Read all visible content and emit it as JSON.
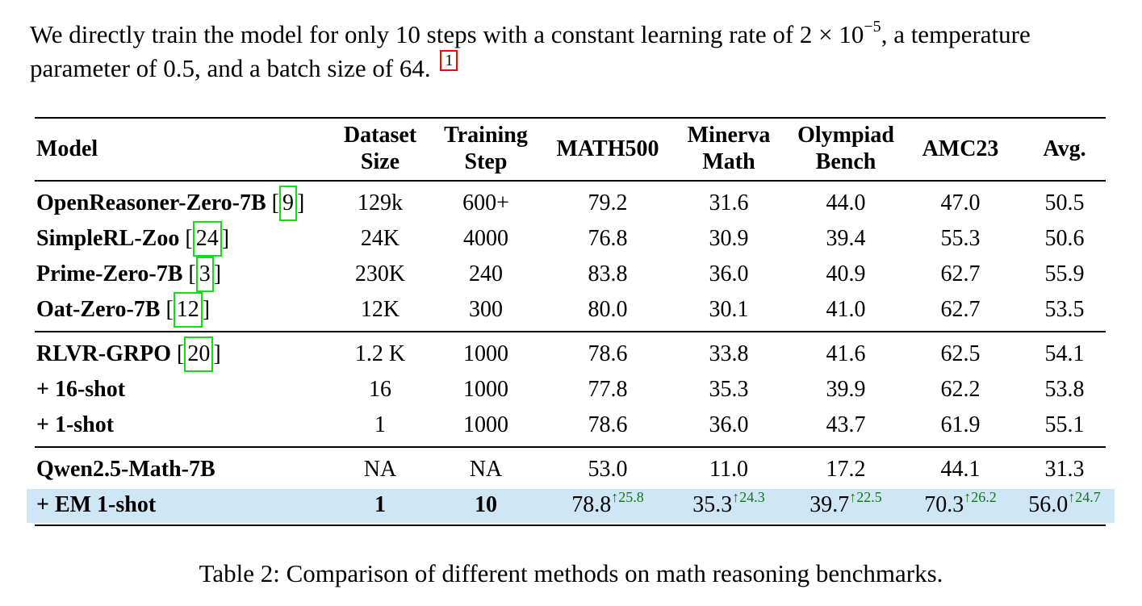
{
  "paragraph": {
    "text_before": "We directly train the model for only 10 steps with a constant learning rate of 2 × 10",
    "exponent": "−5",
    "text_after": ", a temperature parameter of 0.5, and a batch size of 64.",
    "footnote": "1"
  },
  "table": {
    "headers": {
      "model": "Model",
      "dataset_size": [
        "Dataset",
        "Size"
      ],
      "training_step": [
        "Training",
        "Step"
      ],
      "math500": "MATH500",
      "minerva": [
        "Minerva",
        "Math"
      ],
      "olympiad": [
        "Olympiad",
        "Bench"
      ],
      "amc23": "AMC23",
      "avg": "Avg."
    },
    "rows": [
      {
        "model": "OpenReasoner-Zero-7B",
        "cite": "9",
        "dataset": "129k",
        "steps": "600+",
        "math500": "79.2",
        "minerva": "31.6",
        "olympiad": "44.0",
        "amc23": "47.0",
        "avg": "50.5"
      },
      {
        "model": "SimpleRL-Zoo",
        "cite": "24",
        "dataset": "24K",
        "steps": "4000",
        "math500": "76.8",
        "minerva": "30.9",
        "olympiad": "39.4",
        "amc23": "55.3",
        "avg": "50.6"
      },
      {
        "model": "Prime-Zero-7B",
        "cite": "3",
        "dataset": "230K",
        "steps": "240",
        "math500": "83.8",
        "minerva": "36.0",
        "olympiad": "40.9",
        "amc23": "62.7",
        "avg": "55.9"
      },
      {
        "model": "Oat-Zero-7B",
        "cite": "12",
        "dataset": "12K",
        "steps": "300",
        "math500": "80.0",
        "minerva": "30.1",
        "olympiad": "41.0",
        "amc23": "62.7",
        "avg": "53.5"
      },
      {
        "model": "RLVR-GRPO",
        "cite": "20",
        "dataset": "1.2 K",
        "steps": "1000",
        "math500": "78.6",
        "minerva": "33.8",
        "olympiad": "41.6",
        "amc23": "62.5",
        "avg": "54.1"
      },
      {
        "model": "+ 16-shot",
        "cite": "",
        "dataset": "16",
        "steps": "1000",
        "math500": "77.8",
        "minerva": "35.3",
        "olympiad": "39.9",
        "amc23": "62.2",
        "avg": "53.8"
      },
      {
        "model": "+ 1-shot",
        "cite": "",
        "dataset": "1",
        "steps": "1000",
        "math500": "78.6",
        "minerva": "36.0",
        "olympiad": "43.7",
        "amc23": "61.9",
        "avg": "55.1"
      },
      {
        "model": "Qwen2.5-Math-7B",
        "cite": "",
        "dataset": "NA",
        "steps": "NA",
        "math500": "53.0",
        "minerva": "11.0",
        "olympiad": "17.2",
        "amc23": "44.1",
        "avg": "31.3"
      }
    ],
    "em_row": {
      "model": "+ EM 1-shot",
      "dataset": "1",
      "steps": "10",
      "math500": "78.8",
      "math500_gain": "↑25.8",
      "minerva": "35.3",
      "minerva_gain": "↑24.3",
      "olympiad": "39.7",
      "olympiad_gain": "↑22.5",
      "amc23": "70.3",
      "amc23_gain": "↑26.2",
      "avg": "56.0",
      "avg_gain": "↑24.7"
    }
  },
  "caption": "Table 2: Comparison of different methods on math reasoning benchmarks.",
  "colors": {
    "highlight_row": "#cfe6f6",
    "gain_text": "#0b7a0b",
    "citation_box": "#11dd11",
    "footnote_box": "#ff0000"
  }
}
